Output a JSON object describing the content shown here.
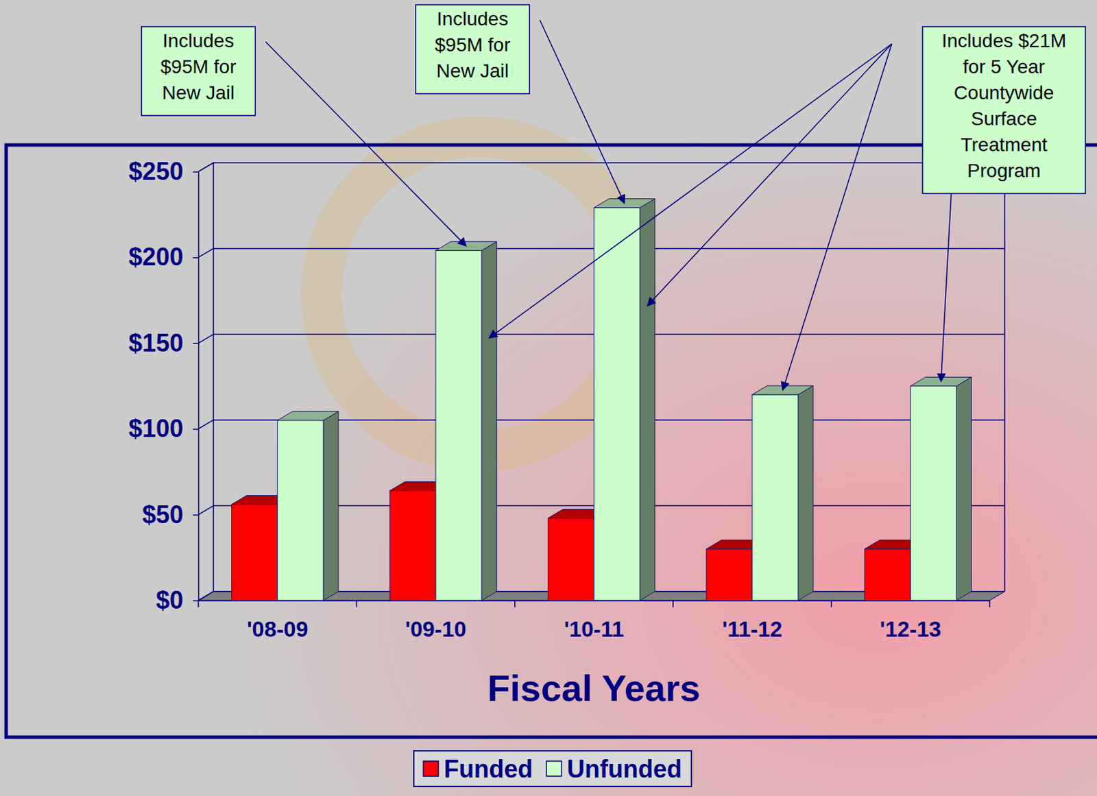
{
  "chart_data": {
    "type": "bar",
    "categories": [
      "'08-09",
      "'09-10",
      "'10-11",
      "'11-12",
      "'12-13"
    ],
    "series": [
      {
        "name": "Funded",
        "color": "#ff0000",
        "values": [
          56,
          64,
          48,
          30,
          30
        ]
      },
      {
        "name": "Unfunded",
        "color": "#ccffcc",
        "values": [
          105,
          204,
          229,
          120,
          125
        ]
      }
    ],
    "x_label": "Fiscal Years",
    "ylim": [
      0,
      250
    ],
    "yticks": [
      {
        "value": 0,
        "label": "$0"
      },
      {
        "value": 50,
        "label": "$50"
      },
      {
        "value": 100,
        "label": "$100"
      },
      {
        "value": 150,
        "label": "$150"
      },
      {
        "value": 200,
        "label": "$200"
      },
      {
        "value": 250,
        "label": "$250"
      }
    ],
    "grid": true,
    "legend": "bottom",
    "annotations": [
      {
        "text": "Includes $95M for New Jail",
        "categories": [
          "'09-10"
        ]
      },
      {
        "text": "Includes $95M for New Jail",
        "categories": [
          "'10-11"
        ]
      },
      {
        "text": "Includes $21M for 5 Year Countywide Surface Treatment Program",
        "categories": [
          "'09-10",
          "'10-11",
          "'11-12",
          "'12-13"
        ]
      }
    ]
  }
}
